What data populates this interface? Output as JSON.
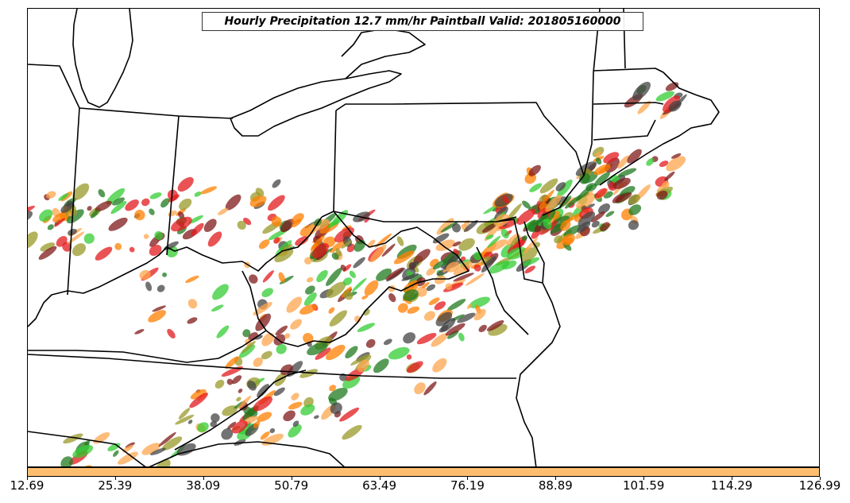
{
  "title": "Hourly Precipitation 12.7 mm/hr Paintball Valid: 201805160000",
  "colorbar": {
    "color": "#FDBF6F",
    "ticks": [
      "12.69",
      "25.39",
      "38.09",
      "50.79",
      "63.49",
      "76.19",
      "88.89",
      "101.59",
      "114.29",
      "126.99"
    ]
  },
  "member_colors": [
    "#E31A1C",
    "#FF7F00",
    "#FDA54E",
    "#33CC33",
    "#1F7A1F",
    "#7F1A1A",
    "#9A9A2A",
    "#444444"
  ]
}
